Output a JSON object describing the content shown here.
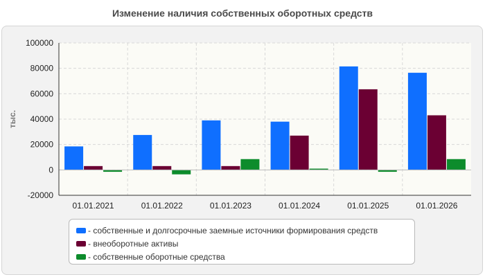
{
  "colors": {
    "series1": "#0f6fff",
    "series2": "#6b0033",
    "series3": "#0d8c2c",
    "plot_bg": "#fbfbf6",
    "grid": "#d8d8d8"
  },
  "chart_data": {
    "type": "bar",
    "title": "Изменение наличия собственных оборотных средств",
    "ylabel": "тыс.",
    "xlabel": "",
    "categories": [
      "01.01.2021",
      "01.01.2022",
      "01.01.2023",
      "01.01.2024",
      "01.01.2025",
      "01.01.2026"
    ],
    "series": [
      {
        "name": "- собственные и долгосрочные заемные источники формирования средств",
        "values": [
          18500,
          27500,
          39000,
          38000,
          81500,
          76500
        ]
      },
      {
        "name": "- внеоборотные активы",
        "values": [
          3000,
          3000,
          3000,
          27000,
          63500,
          43000
        ]
      },
      {
        "name": "- собственные оборотные средства",
        "values": [
          -1500,
          -3500,
          8500,
          1000,
          -1500,
          8500
        ]
      }
    ],
    "ylim": [
      -20000,
      100000
    ],
    "yticks": [
      -20000,
      0,
      20000,
      40000,
      60000,
      80000,
      100000
    ],
    "grid": true,
    "legend_position": "bottom"
  }
}
